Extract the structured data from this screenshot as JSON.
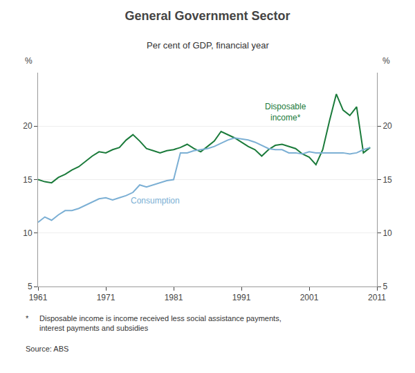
{
  "chart_data": {
    "type": "line",
    "title": "General Government Sector",
    "subtitle": "Per cent of GDP, financial year",
    "ylabel": "%",
    "y2label": "%",
    "xlim": [
      1961,
      2011
    ],
    "xticks": [
      1961,
      1971,
      1981,
      1991,
      2001,
      2011
    ],
    "ylim": [
      5,
      25
    ],
    "yticks": [
      5,
      10,
      15,
      20
    ],
    "y2lim": [
      5,
      25
    ],
    "y2ticks": [
      5,
      10,
      15,
      20
    ],
    "grid": true,
    "footnotes": [
      "*",
      "Disposable income is income received less social assistance payments,\ninterest payments and subsidies",
      "Source: ABS"
    ],
    "x": [
      1961,
      1962,
      1963,
      1964,
      1965,
      1966,
      1967,
      1968,
      1969,
      1970,
      1971,
      1972,
      1973,
      1974,
      1975,
      1976,
      1977,
      1978,
      1979,
      1980,
      1981,
      1982,
      1983,
      1984,
      1985,
      1986,
      1987,
      1988,
      1989,
      1990,
      1991,
      1992,
      1993,
      1994,
      1995,
      1996,
      1997,
      1998,
      1999,
      2000,
      2001,
      2002,
      2003,
      2004,
      2005,
      2006,
      2007,
      2008,
      2009,
      2010
    ],
    "series": [
      {
        "name": "Disposable\nincome*",
        "color": "#1a7a3a",
        "values": [
          15.0,
          14.8,
          14.7,
          15.2,
          15.5,
          15.9,
          16.2,
          16.7,
          17.2,
          17.6,
          17.5,
          17.8,
          18.0,
          18.7,
          19.2,
          18.6,
          17.9,
          17.7,
          17.5,
          17.7,
          17.8,
          18.0,
          18.3,
          17.9,
          17.6,
          18.1,
          18.6,
          19.5,
          19.2,
          18.9,
          18.5,
          18.1,
          17.8,
          17.2,
          17.8,
          18.2,
          18.3,
          18.1,
          17.9,
          17.4,
          17.1,
          16.4,
          17.8,
          20.5,
          23.0,
          21.5,
          21.0,
          21.8,
          17.5,
          18.0
        ]
      },
      {
        "name": "Consumption",
        "color": "#7BAFD4",
        "values": [
          11.0,
          11.5,
          11.2,
          11.7,
          12.1,
          12.1,
          12.3,
          12.6,
          12.9,
          13.2,
          13.3,
          13.1,
          13.3,
          13.5,
          13.8,
          14.5,
          14.3,
          14.5,
          14.7,
          14.9,
          15.0,
          17.5,
          17.5,
          17.7,
          17.8,
          17.9,
          18.1,
          18.4,
          18.7,
          18.9,
          18.8,
          18.7,
          18.5,
          18.2,
          17.9,
          17.8,
          17.8,
          17.5,
          17.5,
          17.4,
          17.6,
          17.5,
          17.5,
          17.5,
          17.5,
          17.5,
          17.4,
          17.5,
          17.8,
          18.0
        ]
      }
    ]
  }
}
